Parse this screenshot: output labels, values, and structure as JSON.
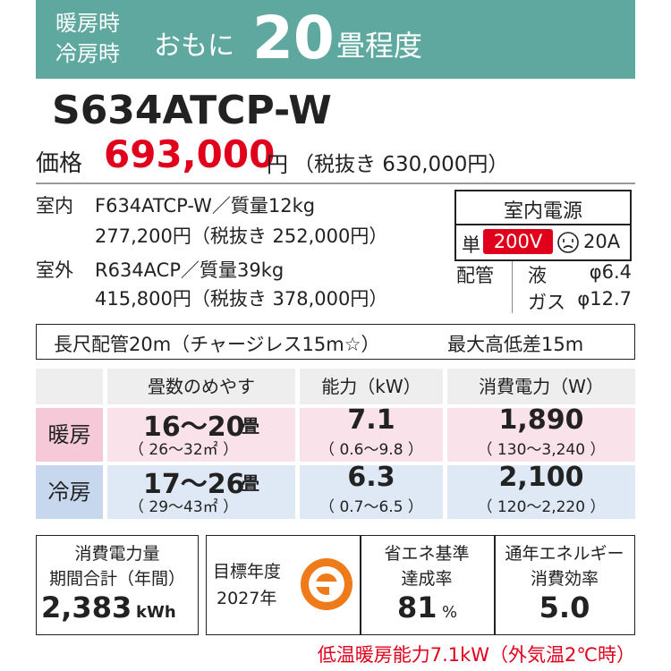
{
  "header": {
    "modes": [
      "暖房時",
      "冷房時"
    ],
    "prefix": "おもに",
    "size": "20",
    "suffix": "畳程度"
  },
  "model": "S634ATCP-W",
  "price": {
    "label": "価格",
    "amount": "693,000",
    "unit": "円",
    "tax_excluded": "（税抜き 630,000円）"
  },
  "units": [
    {
      "label": "室内",
      "model": "F634ATCP-W／質量12kg",
      "price": "277,200円（税抜き 252,000円）"
    },
    {
      "label": "室外",
      "model": "R634ACP／質量39kg",
      "price": "415,800円（税抜き 378,000円）"
    }
  ],
  "power": {
    "title": "室内電源",
    "phase": "単",
    "voltage": "200V",
    "current": "20A"
  },
  "piping": {
    "label": "配管",
    "rows": [
      {
        "name": "液",
        "size": "φ6.4"
      },
      {
        "name": "ガス",
        "size": "φ12.7"
      }
    ]
  },
  "notes": {
    "piping_length": "長尺配管20m（チャージレス15m☆）",
    "height_diff": "最大高低差15m"
  },
  "table": {
    "headers": [
      "畳数のめやす",
      "能力（kW）",
      "消費電力（W）"
    ],
    "rows": [
      {
        "label": "暖房",
        "cells": [
          {
            "main": "16～20",
            "unit": "畳",
            "range": "（ 26～32㎡ ）"
          },
          {
            "main": "7.1",
            "range": "（ 0.6～9.8 ）"
          },
          {
            "main": "1,890",
            "range": "（ 130～3,240 ）"
          }
        ]
      },
      {
        "label": "冷房",
        "cells": [
          {
            "main": "17～26",
            "unit": "畳",
            "range": "（ 29～43㎡ ）"
          },
          {
            "main": "6.3",
            "range": "（ 0.7～6.5 ）"
          },
          {
            "main": "2,100",
            "range": "（ 120～2,220 ）"
          }
        ]
      }
    ]
  },
  "efficiency": {
    "energy": {
      "lines": [
        "消費電力量",
        "期間合計（年間）"
      ],
      "value": "2,383",
      "unit": "kWh"
    },
    "target": {
      "lines": [
        "目標年度",
        "2027年"
      ]
    },
    "achievement": {
      "lines": [
        "省エネ基準",
        "達成率"
      ],
      "value": "81",
      "unit": "%"
    },
    "apf": {
      "lines": [
        "通年エネルギー",
        "消費効率"
      ],
      "value": "5.0"
    }
  },
  "footnote": "低温暖房能力7.1kW（外気温2℃時）"
}
